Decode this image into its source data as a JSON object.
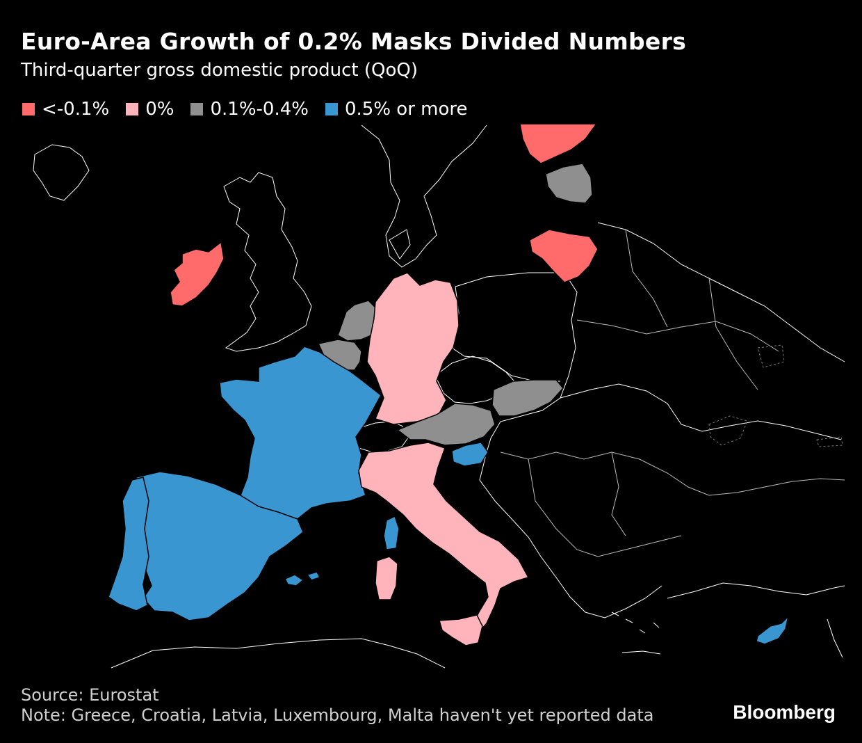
{
  "header": {
    "title": "Euro-Area Growth of 0.2% Masks Divided Numbers",
    "subtitle": "Third-quarter gross domestic product (QoQ)"
  },
  "legend": [
    {
      "label": "<-0.1%",
      "color": "#ff6b6b"
    },
    {
      "label": "0%",
      "color": "#ffb3ba"
    },
    {
      "label": "0.1%-0.4%",
      "color": "#8f8f8f"
    },
    {
      "label": "0.5% or more",
      "color": "#3a96d0"
    }
  ],
  "map": {
    "categories": {
      "negative": "#ff6b6b",
      "zero": "#ffb3ba",
      "low": "#8f8f8f",
      "high": "#3a96d0"
    },
    "countries": [
      {
        "name": "Ireland",
        "category": "negative"
      },
      {
        "name": "Finland",
        "category": "negative"
      },
      {
        "name": "Lithuania",
        "category": "negative"
      },
      {
        "name": "Estonia",
        "category": "low"
      },
      {
        "name": "Netherlands",
        "category": "low"
      },
      {
        "name": "Belgium",
        "category": "low"
      },
      {
        "name": "Austria",
        "category": "low"
      },
      {
        "name": "Slovakia",
        "category": "low"
      },
      {
        "name": "Germany",
        "category": "zero"
      },
      {
        "name": "Italy",
        "category": "zero"
      },
      {
        "name": "France",
        "category": "high"
      },
      {
        "name": "Spain",
        "category": "high"
      },
      {
        "name": "Portugal",
        "category": "high"
      },
      {
        "name": "Slovenia",
        "category": "high"
      },
      {
        "name": "Cyprus",
        "category": "high"
      }
    ]
  },
  "footer": {
    "source": "Source: Eurostat",
    "note": "Note: Greece, Croatia, Latvia, Luxembourg, Malta haven't yet reported data",
    "brand": "Bloomberg"
  }
}
